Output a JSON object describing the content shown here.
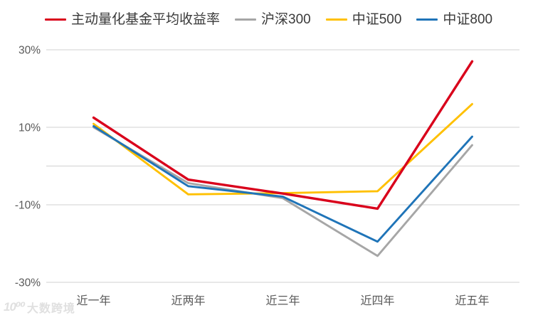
{
  "chart_data": {
    "type": "line",
    "title": "",
    "categories": [
      "近一年",
      "近两年",
      "近三年",
      "近四年",
      "近五年"
    ],
    "series": [
      {
        "name": "主动量化基金平均收益率",
        "color": "#d9001b",
        "values": [
          12.5,
          -3.5,
          -7.1,
          -11.0,
          27.0
        ]
      },
      {
        "name": "沪深300",
        "color": "#a6a6a6",
        "values": [
          10.0,
          -4.4,
          -8.3,
          -23.2,
          5.4
        ]
      },
      {
        "name": "中证500",
        "color": "#ffc000",
        "values": [
          10.9,
          -7.3,
          -7.0,
          -6.5,
          16.0
        ]
      },
      {
        "name": "中证800",
        "color": "#1f74b8",
        "values": [
          10.3,
          -5.2,
          -7.9,
          -19.5,
          7.6
        ]
      }
    ],
    "draw_order": [
      1,
      2,
      3,
      0
    ],
    "xlabel": "",
    "ylabel": "",
    "y_axis": {
      "unit": "percent",
      "range": [
        -30,
        30
      ],
      "tick_labels": [
        "30%",
        "10%",
        "-10%",
        "-30%"
      ],
      "tick_values": [
        30,
        10,
        -10,
        -30
      ],
      "gridline_values": [
        30,
        10,
        0,
        -10,
        -30
      ]
    },
    "grid": true,
    "legend_position": "top"
  },
  "watermark": {
    "logo_text": "10⁰⁰",
    "brand_text": "大数跨境"
  },
  "colors": {
    "background": "#ffffff",
    "gridline": "#d9d9d9",
    "axis_text": "#595959",
    "legend_text": "#3a3a3a",
    "watermark": "#e0e0e0"
  }
}
